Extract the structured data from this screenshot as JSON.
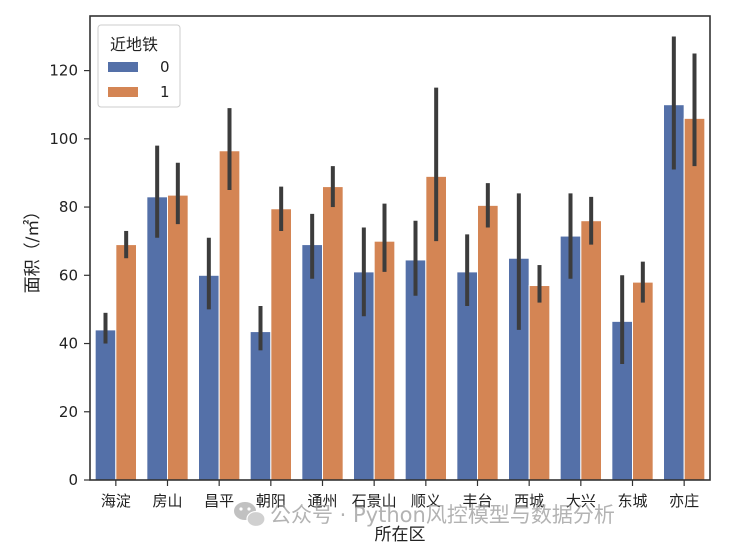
{
  "chart_data": {
    "type": "bar",
    "title": "",
    "xlabel": "所在区",
    "ylabel": "面积（/㎡）",
    "ylim": [
      0,
      136
    ],
    "yticks": [
      0,
      20,
      40,
      60,
      80,
      100,
      120
    ],
    "grid": false,
    "legend": {
      "title": "近地铁",
      "position": "top-left"
    },
    "categories": [
      "海淀",
      "房山",
      "昌平",
      "朝阳",
      "通州",
      "石景山",
      "顺义",
      "丰台",
      "西城",
      "大兴",
      "东城",
      "亦庄"
    ],
    "series": [
      {
        "name": "0",
        "color": "#5470a8",
        "values": [
          44,
          83,
          60,
          43.5,
          69,
          61,
          64.5,
          61,
          65,
          71.5,
          46.5,
          110
        ],
        "ci_low": [
          40,
          71,
          50,
          38,
          59,
          48,
          54,
          51,
          44,
          59,
          34,
          91
        ],
        "ci_high": [
          49,
          98,
          71,
          51,
          78,
          74,
          76,
          72,
          84,
          84,
          60,
          130
        ]
      },
      {
        "name": "1",
        "color": "#d48554",
        "values": [
          69,
          83.5,
          96.5,
          79.5,
          86,
          70,
          89,
          80.5,
          57,
          76,
          58,
          106
        ],
        "ci_low": [
          65,
          75,
          85,
          73,
          80,
          61,
          70,
          74,
          52,
          69,
          52,
          92
        ],
        "ci_high": [
          73,
          93,
          109,
          86,
          92,
          81,
          115,
          87,
          63,
          83,
          64,
          125
        ]
      }
    ]
  },
  "watermark": {
    "text": "公众号 · Python风控模型与数据分析",
    "icon": "wechat-icon"
  }
}
